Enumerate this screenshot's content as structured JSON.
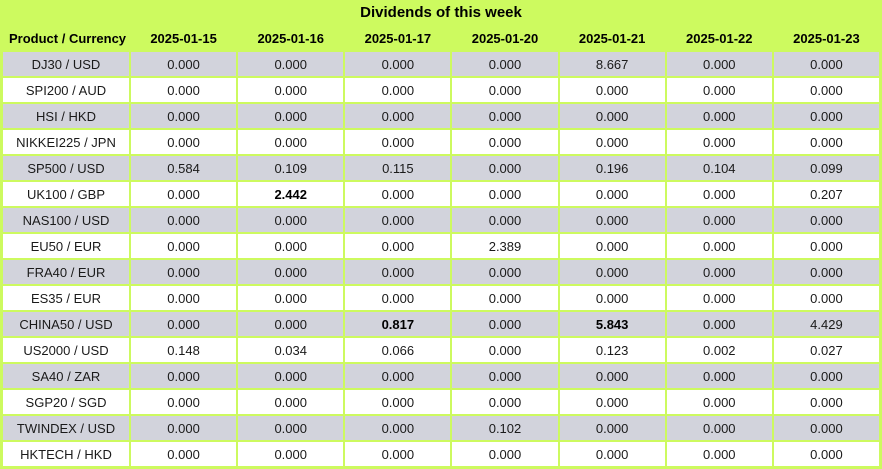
{
  "chart_data": {
    "type": "table",
    "title": "Dividends of this week",
    "columns": [
      "Product / Currency",
      "2025-01-15",
      "2025-01-16",
      "2025-01-17",
      "2025-01-20",
      "2025-01-21",
      "2025-01-22",
      "2025-01-23"
    ],
    "rows": [
      [
        "DJ30 / USD",
        "0.000",
        "0.000",
        "0.000",
        "0.000",
        "8.667",
        "0.000",
        "0.000"
      ],
      [
        "SPI200 / AUD",
        "0.000",
        "0.000",
        "0.000",
        "0.000",
        "0.000",
        "0.000",
        "0.000"
      ],
      [
        "HSI / HKD",
        "0.000",
        "0.000",
        "0.000",
        "0.000",
        "0.000",
        "0.000",
        "0.000"
      ],
      [
        "NIKKEI225 / JPN",
        "0.000",
        "0.000",
        "0.000",
        "0.000",
        "0.000",
        "0.000",
        "0.000"
      ],
      [
        "SP500 / USD",
        "0.584",
        "0.109",
        "0.115",
        "0.000",
        "0.196",
        "0.104",
        "0.099"
      ],
      [
        "UK100 / GBP",
        "0.000",
        "2.442",
        "0.000",
        "0.000",
        "0.000",
        "0.000",
        "0.207"
      ],
      [
        "NAS100 / USD",
        "0.000",
        "0.000",
        "0.000",
        "0.000",
        "0.000",
        "0.000",
        "0.000"
      ],
      [
        "EU50 / EUR",
        "0.000",
        "0.000",
        "0.000",
        "2.389",
        "0.000",
        "0.000",
        "0.000"
      ],
      [
        "FRA40 / EUR",
        "0.000",
        "0.000",
        "0.000",
        "0.000",
        "0.000",
        "0.000",
        "0.000"
      ],
      [
        "ES35 / EUR",
        "0.000",
        "0.000",
        "0.000",
        "0.000",
        "0.000",
        "0.000",
        "0.000"
      ],
      [
        "CHINA50 / USD",
        "0.000",
        "0.000",
        "0.817",
        "0.000",
        "5.843",
        "0.000",
        "4.429"
      ],
      [
        "US2000 / USD",
        "0.148",
        "0.034",
        "0.066",
        "0.000",
        "0.123",
        "0.002",
        "0.027"
      ],
      [
        "SA40 / ZAR",
        "0.000",
        "0.000",
        "0.000",
        "0.000",
        "0.000",
        "0.000",
        "0.000"
      ],
      [
        "SGP20 / SGD",
        "0.000",
        "0.000",
        "0.000",
        "0.000",
        "0.000",
        "0.000",
        "0.000"
      ],
      [
        "TWINDEX / USD",
        "0.000",
        "0.000",
        "0.000",
        "0.102",
        "0.000",
        "0.000",
        "0.000"
      ],
      [
        "HKTECH / HKD",
        "0.000",
        "0.000",
        "0.000",
        "0.000",
        "0.000",
        "0.000",
        "0.000"
      ]
    ],
    "bold_cells": [
      {
        "row": 5,
        "col": 2
      },
      {
        "row": 10,
        "col": 3
      },
      {
        "row": 10,
        "col": 5
      }
    ],
    "row_striping": [
      "gray",
      "white"
    ],
    "layout_hints": {
      "first_row_shade": "gray",
      "grid_line_color_is_background_green": true
    },
    "colors": {
      "header_green": "#CDFA5F",
      "row_gray": "#D2D3DC",
      "row_white": "#FFFFFF",
      "text": "#1A1A1A"
    }
  }
}
